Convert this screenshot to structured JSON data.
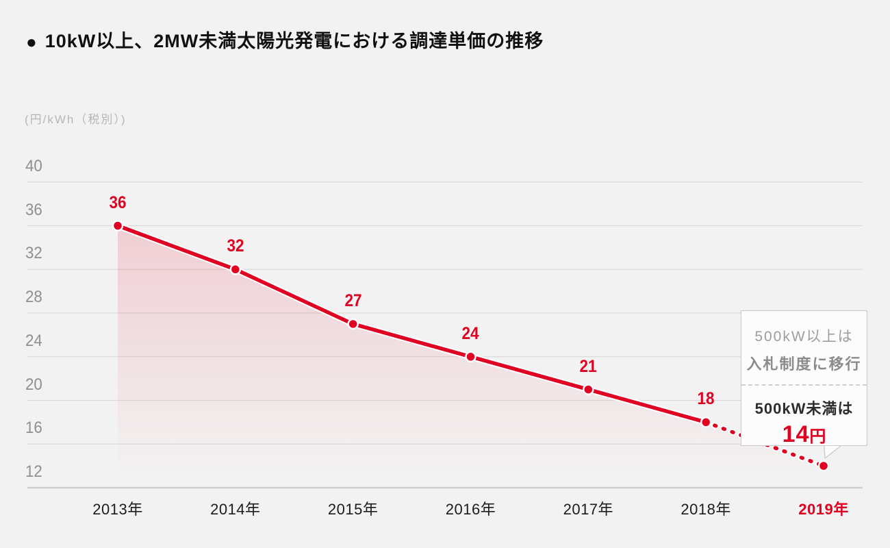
{
  "title": {
    "bullet": "●",
    "text": "10kW以上、2MW未満太陽光発電における調達単価の推移"
  },
  "unit_label": "(円/kWh（税別）)",
  "chart_data": {
    "type": "line",
    "title": "10kW以上、2MW未満太陽光発電における調達単価の推移",
    "ylabel": "(円/kWh（税別）)",
    "xlabel": "",
    "categories": [
      "2013年",
      "2014年",
      "2015年",
      "2016年",
      "2017年",
      "2018年",
      "2019年"
    ],
    "series": [
      {
        "name": "調達単価",
        "values": [
          36,
          32,
          27,
          24,
          21,
          18,
          14
        ],
        "point_labels": [
          "36",
          "32",
          "27",
          "24",
          "21",
          "18",
          ""
        ]
      }
    ],
    "yticks": [
      40,
      36,
      32,
      28,
      24,
      20,
      16,
      12
    ],
    "ylim": [
      12,
      41.5
    ],
    "grid": true,
    "legend": "none",
    "style": {
      "solid_until_index": 5,
      "dashed_from_index": 5,
      "area_fill": true,
      "highlight_category": "2019年"
    }
  },
  "callout": {
    "line1": "500kW以上は",
    "line2": "入札制度に移行",
    "line3": "500kW未満は",
    "value": "14",
    "value_unit": "円"
  },
  "colors": {
    "background": "#f2f2f2",
    "accent_red": "#e00021",
    "grid_line": "#dadada",
    "axis_line": "#d0d0d0",
    "tick_text": "#8f8f8f",
    "unit_text": "#b6b6b6",
    "title_text": "#101010",
    "xlabel_text": "#1c1c1c",
    "area_fill_top": "rgba(224,0,33,0.15)",
    "area_fill_bottom": "rgba(224,0,33,0)",
    "point_halo": "#ffffff",
    "callout_bg": "#fcfcfc",
    "callout_border": "#c9c9c9",
    "callout_gray_text": "#9d9d9d",
    "callout_dark_text": "#2c2c2c"
  }
}
